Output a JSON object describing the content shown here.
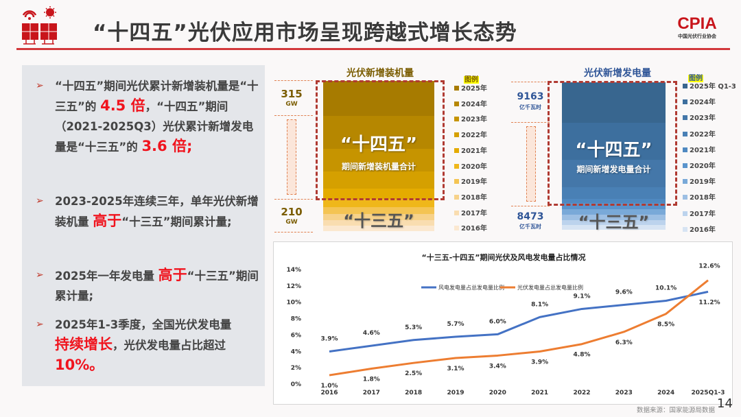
{
  "header": {
    "title": "“十四五”光伏应用市场呈现跨越式增长态势",
    "logo_text": "CPIA",
    "logo_subtext": "中国光伏行业协会"
  },
  "bullets": [
    {
      "parts": [
        "“十四五”期间光伏累计新增装机量是“十三五”的 ",
        "4.5 倍",
        "，“十四五”期间（2021-2025Q3）光伏累计新增发电量是“十三五”的 ",
        "3.6 倍;",
        ""
      ]
    },
    {
      "parts": [
        "2023-2025年连续三年，单年光伏新增装机量 ",
        "高于",
        "“十三五”期间累计量;"
      ]
    },
    {
      "parts": [
        "2025年一年发电量 ",
        "高于",
        "“十三五”期间累计量;"
      ]
    },
    {
      "parts": [
        "2025年1-3季度，全国光伏发电量",
        "持续增长",
        "，光伏发电量占比超过",
        "10%。"
      ]
    }
  ],
  "install_chart": {
    "title": "光伏新增装机量",
    "legend_title": "图例",
    "legend": [
      "2025年",
      "2024年",
      "2023年",
      "2022年",
      "2021年",
      "2020年",
      "2019年",
      "2018年",
      "2017年",
      "2016年"
    ],
    "colors": [
      "#a77b00",
      "#b68700",
      "#c69400",
      "#d5a000",
      "#e4ab00",
      "#efb71a",
      "#f4c453",
      "#f7d28a",
      "#f9ddb0",
      "#fbe8d0"
    ],
    "top_value": "315",
    "top_unit": "GW",
    "bottom_value": "210",
    "bottom_unit": "GW",
    "over_label": "“十四五”",
    "over_sub": "期间新增装机量合计",
    "under_label": "“十三五”"
  },
  "gen_chart": {
    "title": "光伏新增发电量",
    "legend_title": "图例",
    "legend": [
      "2025年 Q1-3",
      "2024年",
      "2023年",
      "2022年",
      "2021年",
      "2020年",
      "2019年",
      "2018年",
      "2017年",
      "2016年"
    ],
    "colors": [
      "#38668f",
      "#3d6f9e",
      "#4477a9",
      "#4980b5",
      "#4f89c1",
      "#5a94cc",
      "#79a9d8",
      "#9dbfe3",
      "#bcd3ed",
      "#d7e4f3"
    ],
    "top_value": "9163",
    "top_unit": "亿千瓦时",
    "bottom_value": "8473",
    "bottom_unit": "亿千瓦时",
    "over_label": "“十四五”",
    "over_sub": "期间新增发电量合计",
    "under_label": "“十三五”"
  },
  "chart_data": {
    "type": "line",
    "title": "“十三五-十四五”期间光伏及风电发电量占比情况",
    "categories": [
      "2016",
      "2017",
      "2018",
      "2019",
      "2020",
      "2021",
      "2022",
      "2023",
      "2024",
      "2025Q1-3"
    ],
    "yticks": [
      "0%",
      "2%",
      "4%",
      "6%",
      "8%",
      "10%",
      "12%",
      "14%"
    ],
    "ylim": [
      0,
      14
    ],
    "legend_position": "top",
    "series": [
      {
        "name": "风电发电量占总发电量比例",
        "color": "#4472c4",
        "values": [
          3.9,
          4.6,
          5.3,
          5.7,
          6.0,
          8.1,
          9.1,
          9.6,
          10.1,
          11.2
        ],
        "labels": [
          "3.9%",
          "4.6%",
          "5.3%",
          "5.7%",
          "6.0%",
          "8.1%",
          "9.1%",
          "9.6%",
          "10.1%",
          "11.2%"
        ]
      },
      {
        "name": "光伏发电量占总发电量比例",
        "color": "#ed7d31",
        "values": [
          1.0,
          1.8,
          2.5,
          3.1,
          3.4,
          3.9,
          4.8,
          6.3,
          8.5,
          12.6
        ],
        "labels": [
          "1.0%",
          "1.8%",
          "2.5%",
          "3.1%",
          "3.4%",
          "3.9%",
          "4.8%",
          "6.3%",
          "8.5%",
          "12.6%"
        ]
      }
    ]
  },
  "footer": {
    "source": "数据来源：国家能源局数据",
    "page_number": "14"
  }
}
